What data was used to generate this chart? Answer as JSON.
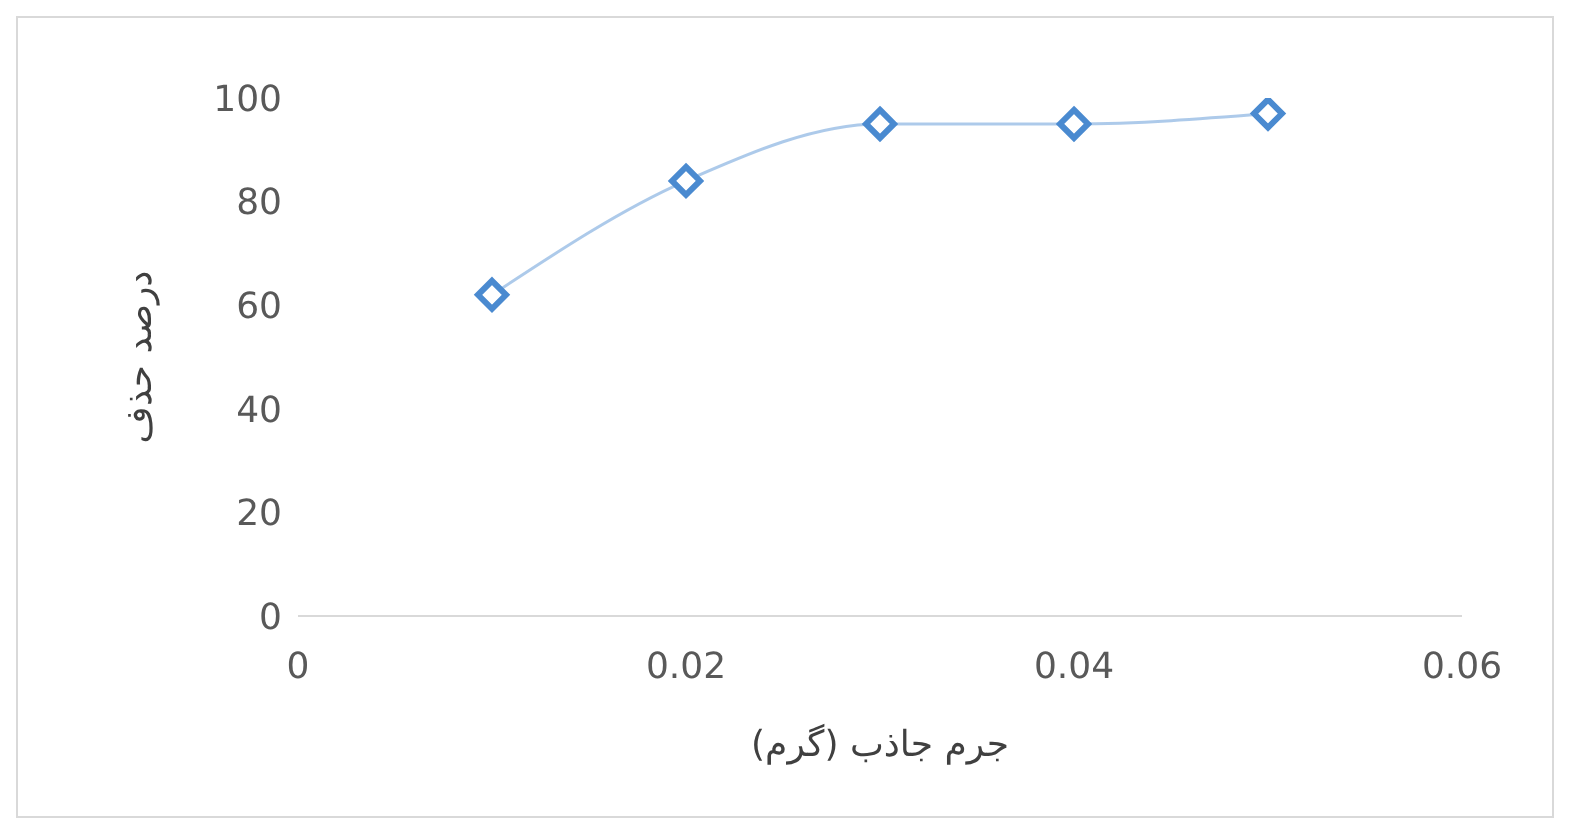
{
  "chart_data": {
    "type": "line",
    "xlabel": "جرم جاذب (گرم)",
    "ylabel": "درصد حذف",
    "x": [
      0.01,
      0.02,
      0.03,
      0.04,
      0.05
    ],
    "series": [
      {
        "color": "#4a8ad0",
        "values": [
          62,
          84,
          95,
          95,
          97
        ]
      }
    ],
    "xlim": [
      0,
      0.06
    ],
    "xticks": [
      0,
      0.02,
      0.04,
      0.06
    ],
    "ylim": [
      0,
      100
    ],
    "yticks": [
      0,
      20,
      40,
      60,
      80,
      100
    ],
    "grid": false,
    "legend": false,
    "marker": "diamond",
    "line_style": "solid"
  }
}
